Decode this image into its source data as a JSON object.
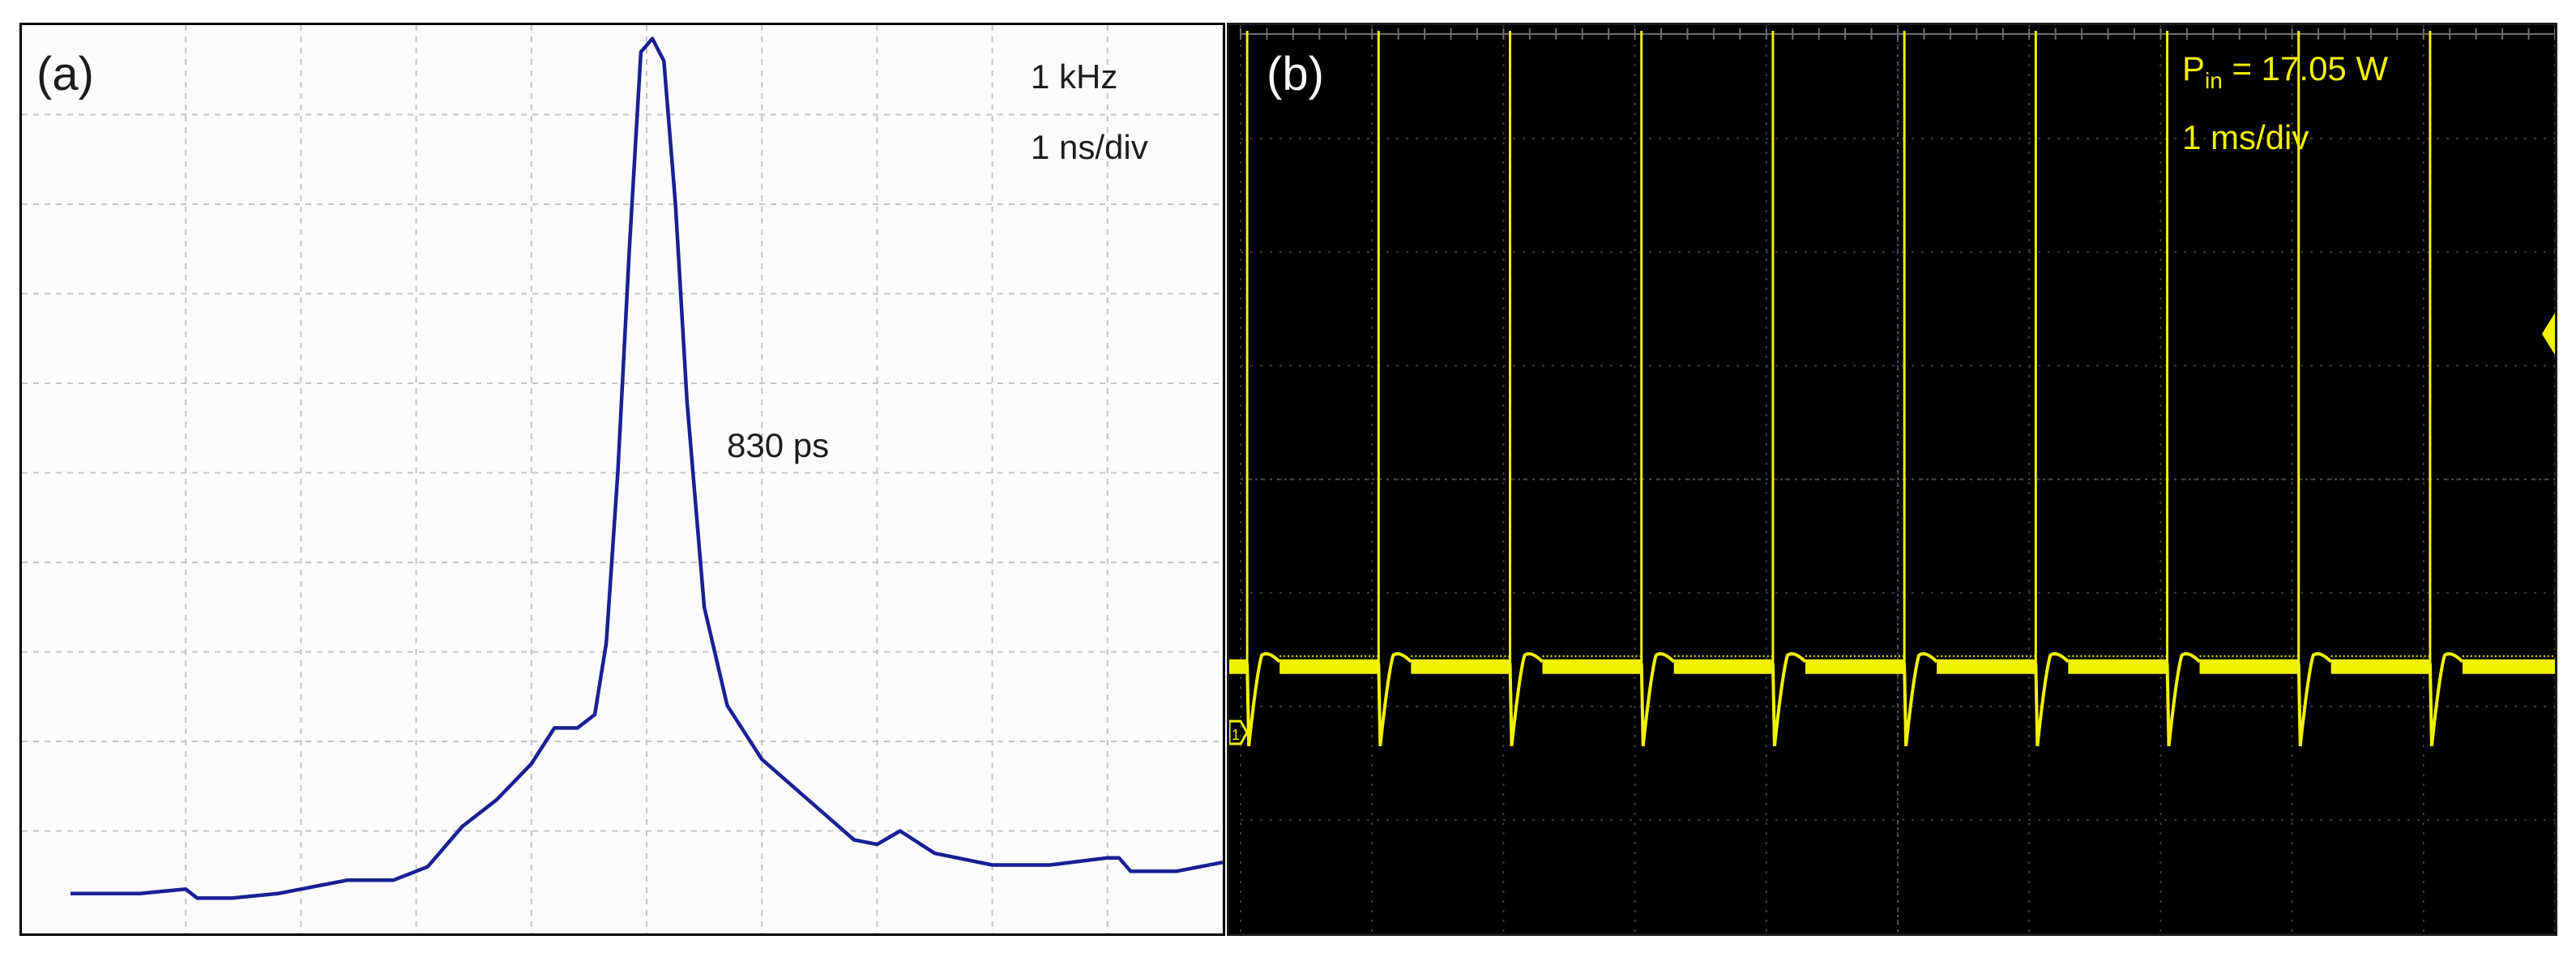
{
  "chart_data": [
    {
      "panel_label": "(a)",
      "type": "line",
      "annotations": [
        "1 kHz",
        "1 ns/div",
        "830 ps"
      ],
      "line_color": "#1a1f96",
      "background": "#fcfcfc",
      "grid": true,
      "grid_divisions": {
        "x": 10,
        "y": 10
      },
      "xlim": [
        -5,
        5
      ],
      "ylim": [
        0,
        10
      ],
      "x_unit": "ns",
      "fwhm_ps": 830,
      "series": [
        {
          "x": [
            -5.0,
            -4.4,
            -4.0,
            -3.9,
            -3.6,
            -3.2,
            -2.6,
            -2.2,
            -1.9,
            -1.6,
            -1.3,
            -1.0,
            -0.8,
            -0.6,
            -0.45,
            -0.35,
            -0.25,
            -0.15,
            -0.05,
            0.05,
            0.15,
            0.25,
            0.35,
            0.5,
            0.7,
            1.0,
            1.4,
            1.8,
            2.0,
            2.2,
            2.5,
            3.0,
            3.5,
            4.0,
            4.1,
            4.2,
            4.6,
            5.0
          ],
          "y": [
            0.3,
            0.3,
            0.35,
            0.25,
            0.25,
            0.3,
            0.45,
            0.45,
            0.6,
            1.05,
            1.35,
            1.75,
            2.15,
            2.15,
            2.3,
            3.1,
            5.0,
            7.5,
            9.7,
            9.85,
            9.6,
            8.0,
            5.8,
            3.5,
            2.4,
            1.8,
            1.35,
            0.9,
            0.85,
            1.0,
            0.75,
            0.62,
            0.62,
            0.7,
            0.7,
            0.55,
            0.55,
            0.65
          ]
        }
      ]
    },
    {
      "panel_label": "(b)",
      "type": "line",
      "annotations": [
        "P",
        "in",
        " = 17.05 W",
        "1 ms/div"
      ],
      "line_color": "#f2f200",
      "text_color": "#f2f200",
      "background": "#000000",
      "grid": true,
      "grid_divisions": {
        "x": 10,
        "y": 8
      },
      "xlim": [
        0,
        10
      ],
      "x_unit": "ms",
      "ylim": [
        0,
        8
      ],
      "pulse_period_ms": 1.0,
      "pulse_times_ms": [
        0.05,
        1.05,
        2.05,
        3.05,
        4.05,
        5.05,
        6.05,
        7.05,
        8.05,
        9.05
      ],
      "baseline_level": 2.35,
      "pulse_peak_level": 7.95,
      "undershoot_level": 1.65
    }
  ]
}
